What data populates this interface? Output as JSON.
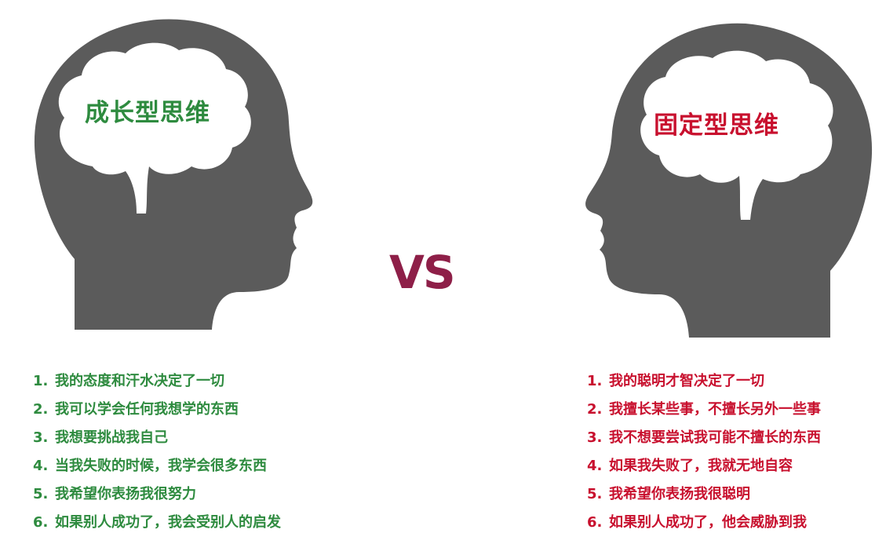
{
  "growth": {
    "title": "成长型思维",
    "color": "#2e8b3f",
    "items": [
      {
        "num": "1.",
        "text": "我的态度和汗水决定了一切"
      },
      {
        "num": "2.",
        "text": "我可以学会任何我想学的东西"
      },
      {
        "num": "3.",
        "text": "我想要挑战我自己"
      },
      {
        "num": "4.",
        "text": "当我失败的时候，我学会很多东西"
      },
      {
        "num": "5.",
        "text": "我希望你表扬我很努力"
      },
      {
        "num": "6.",
        "text": "如果别人成功了，我会受别人的启发"
      }
    ]
  },
  "vs_label": "VS",
  "vs_color": "#8e1f48",
  "fixed": {
    "title": "固定型思维",
    "color": "#c8102e",
    "items": [
      {
        "num": "1.",
        "text": "我的聪明才智决定了一切"
      },
      {
        "num": "2.",
        "text": "我擅长某些事，不擅长另外一些事"
      },
      {
        "num": "3.",
        "text": "我不想要尝试我可能不擅长的东西"
      },
      {
        "num": "4.",
        "text": "如果我失败了，我就无地自容"
      },
      {
        "num": "5.",
        "text": "我希望你表扬我很聪明"
      },
      {
        "num": "6.",
        "text": "如果别人成功了，他会威胁到我"
      }
    ]
  },
  "head_color": "#5b5b5b",
  "brain_color": "#ffffff"
}
